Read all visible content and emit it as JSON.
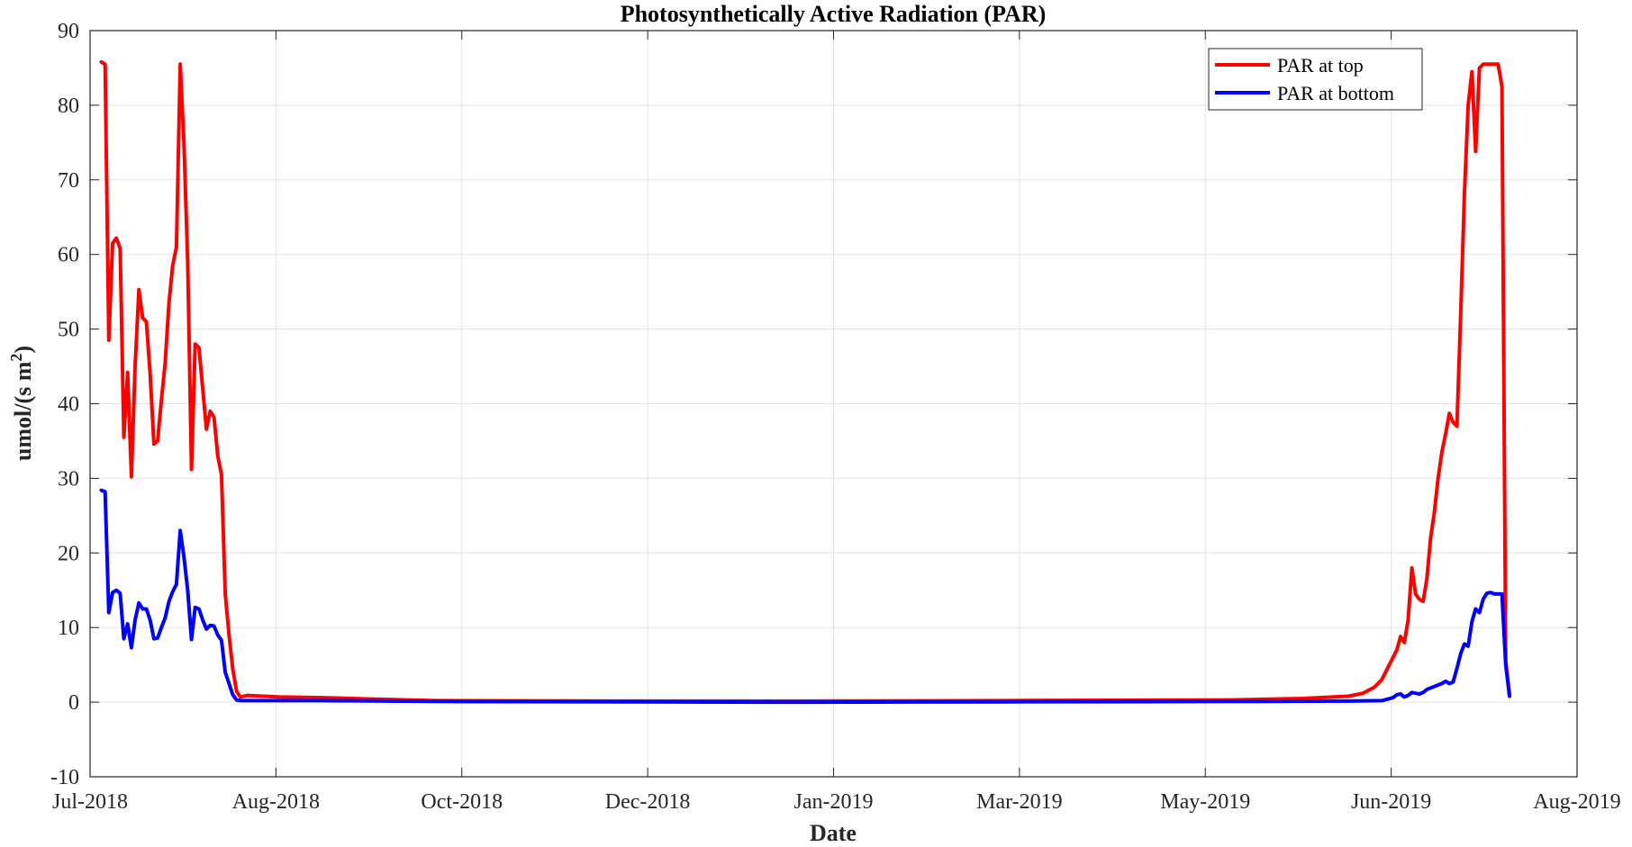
{
  "chart_data": {
    "type": "line",
    "title": "Photosynthetically Active Radiation (PAR)",
    "xlabel": "Date",
    "ylabel_main": "umol/(s m",
    "ylabel_sup": "2",
    "ylabel_close": ")",
    "ylim": [
      -10,
      90
    ],
    "yticks": [
      -10,
      0,
      10,
      20,
      30,
      40,
      50,
      60,
      70,
      80,
      90
    ],
    "xlim": [
      "2018-07-01",
      "2019-08-01"
    ],
    "xtick_labels": [
      "Jul-2018",
      "Aug-2018",
      "Oct-2018",
      "Dec-2018",
      "Jan-2019",
      "Mar-2019",
      "May-2019",
      "Jun-2019",
      "Aug-2019"
    ],
    "grid": true,
    "legend_position": "top-right",
    "series": [
      {
        "name": "PAR at top",
        "color": "#ff0000",
        "points": [
          [
            "2018-07-04",
            85.8
          ],
          [
            "2018-07-05",
            85.5
          ],
          [
            "2018-07-06",
            48.5
          ],
          [
            "2018-07-07",
            61.5
          ],
          [
            "2018-07-08",
            62.2
          ],
          [
            "2018-07-09",
            60.8
          ],
          [
            "2018-07-10",
            35.5
          ],
          [
            "2018-07-11",
            44.2
          ],
          [
            "2018-07-12",
            30.2
          ],
          [
            "2018-07-13",
            45.0
          ],
          [
            "2018-07-14",
            55.3
          ],
          [
            "2018-07-15",
            51.5
          ],
          [
            "2018-07-16",
            51.0
          ],
          [
            "2018-07-17",
            44.0
          ],
          [
            "2018-07-18",
            34.6
          ],
          [
            "2018-07-19",
            35.0
          ],
          [
            "2018-07-20",
            40.5
          ],
          [
            "2018-07-21",
            45.5
          ],
          [
            "2018-07-22",
            53.5
          ],
          [
            "2018-07-23",
            58.5
          ],
          [
            "2018-07-24",
            61.0
          ],
          [
            "2018-07-25",
            85.5
          ],
          [
            "2018-07-26",
            75.0
          ],
          [
            "2018-07-27",
            59.0
          ],
          [
            "2018-07-28",
            31.2
          ],
          [
            "2018-07-29",
            48.0
          ],
          [
            "2018-07-30",
            47.5
          ],
          [
            "2018-07-31",
            42.0
          ],
          [
            "2018-08-01",
            36.6
          ],
          [
            "2018-08-02",
            39.0
          ],
          [
            "2018-08-03",
            38.2
          ],
          [
            "2018-08-04",
            33.0
          ],
          [
            "2018-08-05",
            30.5
          ],
          [
            "2018-08-06",
            14.5
          ],
          [
            "2018-08-07",
            9.0
          ],
          [
            "2018-08-08",
            4.5
          ],
          [
            "2018-08-09",
            1.5
          ],
          [
            "2018-08-10",
            0.7
          ],
          [
            "2018-08-12",
            0.9
          ],
          [
            "2018-08-20",
            0.7
          ],
          [
            "2018-09-01",
            0.6
          ],
          [
            "2018-09-15",
            0.4
          ],
          [
            "2018-10-01",
            0.2
          ],
          [
            "2018-11-15",
            0.15
          ],
          [
            "2019-01-01",
            0.15
          ],
          [
            "2019-03-01",
            0.2
          ],
          [
            "2019-05-01",
            0.3
          ],
          [
            "2019-05-20",
            0.5
          ],
          [
            "2019-06-01",
            0.8
          ],
          [
            "2019-06-05",
            1.2
          ],
          [
            "2019-06-08",
            2.0
          ],
          [
            "2019-06-10",
            3.0
          ],
          [
            "2019-06-12",
            5.0
          ],
          [
            "2019-06-14",
            7.0
          ],
          [
            "2019-06-15",
            8.8
          ],
          [
            "2019-06-16",
            8.0
          ],
          [
            "2019-06-17",
            11.0
          ],
          [
            "2019-06-18",
            18.0
          ],
          [
            "2019-06-19",
            14.5
          ],
          [
            "2019-06-20",
            13.8
          ],
          [
            "2019-06-21",
            13.5
          ],
          [
            "2019-06-22",
            16.5
          ],
          [
            "2019-06-23",
            22.0
          ],
          [
            "2019-06-24",
            25.5
          ],
          [
            "2019-06-25",
            30.0
          ],
          [
            "2019-06-26",
            33.5
          ],
          [
            "2019-06-27",
            36.0
          ],
          [
            "2019-06-28",
            38.7
          ],
          [
            "2019-06-29",
            37.5
          ],
          [
            "2019-06-30",
            37.0
          ],
          [
            "2019-07-01",
            52.0
          ],
          [
            "2019-07-02",
            68.0
          ],
          [
            "2019-07-03",
            80.0
          ],
          [
            "2019-07-04",
            84.5
          ],
          [
            "2019-07-05",
            73.8
          ],
          [
            "2019-07-06",
            85.0
          ],
          [
            "2019-07-07",
            85.5
          ],
          [
            "2019-07-09",
            85.5
          ],
          [
            "2019-07-11",
            85.5
          ],
          [
            "2019-07-12",
            82.5
          ],
          [
            "2019-07-13",
            5.5
          ],
          [
            "2019-07-14",
            1.0
          ]
        ]
      },
      {
        "name": "PAR at bottom",
        "color": "#0000ff",
        "points": [
          [
            "2018-07-04",
            28.4
          ],
          [
            "2018-07-05",
            28.2
          ],
          [
            "2018-07-06",
            12.0
          ],
          [
            "2018-07-07",
            14.7
          ],
          [
            "2018-07-08",
            15.0
          ],
          [
            "2018-07-09",
            14.6
          ],
          [
            "2018-07-10",
            8.5
          ],
          [
            "2018-07-11",
            10.5
          ],
          [
            "2018-07-12",
            7.3
          ],
          [
            "2018-07-13",
            11.0
          ],
          [
            "2018-07-14",
            13.3
          ],
          [
            "2018-07-15",
            12.5
          ],
          [
            "2018-07-16",
            12.5
          ],
          [
            "2018-07-17",
            11.0
          ],
          [
            "2018-07-18",
            8.5
          ],
          [
            "2018-07-19",
            8.6
          ],
          [
            "2018-07-20",
            10.0
          ],
          [
            "2018-07-21",
            11.3
          ],
          [
            "2018-07-22",
            13.5
          ],
          [
            "2018-07-23",
            14.8
          ],
          [
            "2018-07-24",
            15.8
          ],
          [
            "2018-07-25",
            23.0
          ],
          [
            "2018-07-26",
            19.5
          ],
          [
            "2018-07-27",
            15.0
          ],
          [
            "2018-07-28",
            8.4
          ],
          [
            "2018-07-29",
            12.7
          ],
          [
            "2018-07-30",
            12.5
          ],
          [
            "2018-07-31",
            11.0
          ],
          [
            "2018-08-01",
            9.8
          ],
          [
            "2018-08-02",
            10.3
          ],
          [
            "2018-08-03",
            10.2
          ],
          [
            "2018-08-04",
            9.0
          ],
          [
            "2018-08-05",
            8.3
          ],
          [
            "2018-08-06",
            4.0
          ],
          [
            "2018-08-07",
            2.5
          ],
          [
            "2018-08-08",
            1.0
          ],
          [
            "2018-08-09",
            0.3
          ],
          [
            "2018-08-10",
            0.2
          ],
          [
            "2018-09-01",
            0.2
          ],
          [
            "2018-10-01",
            0.1
          ],
          [
            "2019-01-01",
            0.0
          ],
          [
            "2019-03-01",
            0.05
          ],
          [
            "2019-05-01",
            0.1
          ],
          [
            "2019-06-01",
            0.15
          ],
          [
            "2019-06-10",
            0.2
          ],
          [
            "2019-06-13",
            0.6
          ],
          [
            "2019-06-14",
            1.0
          ],
          [
            "2019-06-15",
            1.1
          ],
          [
            "2019-06-16",
            0.7
          ],
          [
            "2019-06-17",
            0.9
          ],
          [
            "2019-06-18",
            1.3
          ],
          [
            "2019-06-19",
            1.2
          ],
          [
            "2019-06-20",
            1.1
          ],
          [
            "2019-06-21",
            1.3
          ],
          [
            "2019-06-22",
            1.7
          ],
          [
            "2019-06-23",
            1.9
          ],
          [
            "2019-06-24",
            2.1
          ],
          [
            "2019-06-25",
            2.3
          ],
          [
            "2019-06-26",
            2.5
          ],
          [
            "2019-06-27",
            2.8
          ],
          [
            "2019-06-28",
            2.5
          ],
          [
            "2019-06-29",
            2.7
          ],
          [
            "2019-06-30",
            4.5
          ],
          [
            "2019-07-01",
            6.5
          ],
          [
            "2019-07-02",
            7.8
          ],
          [
            "2019-07-03",
            7.5
          ],
          [
            "2019-07-04",
            10.8
          ],
          [
            "2019-07-05",
            12.5
          ],
          [
            "2019-07-06",
            12.0
          ],
          [
            "2019-07-07",
            13.8
          ],
          [
            "2019-07-08",
            14.6
          ],
          [
            "2019-07-09",
            14.7
          ],
          [
            "2019-07-10",
            14.5
          ],
          [
            "2019-07-12",
            14.5
          ],
          [
            "2019-07-13",
            5.0
          ],
          [
            "2019-07-14",
            0.8
          ]
        ]
      }
    ]
  }
}
